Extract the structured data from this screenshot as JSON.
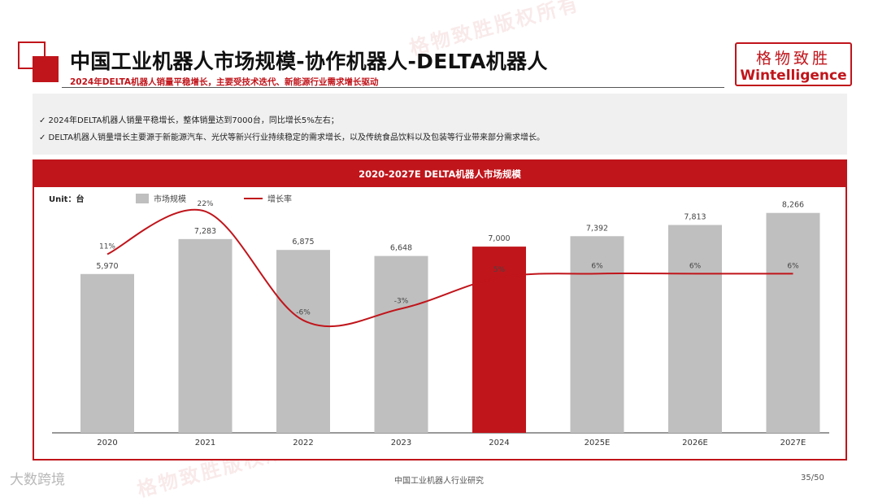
{
  "header": {
    "title": "中国工业机器人市场规模-协作机器人-DELTA机器人",
    "subtitle": "2024年DELTA机器人销量平稳增长，主要受技术迭代、新能源行业需求增长驱动"
  },
  "logo": {
    "cn": "格物致胜",
    "en": "Wintelligence"
  },
  "bullets": [
    "✓ 2024年DELTA机器人销量平稳增长，整体销量达到7000台，同比增长5%左右；",
    "✓ DELTA机器人销量增长主要源于新能源汽车、光伏等新兴行业持续稳定的需求增长，以及传统食品饮料以及包装等行业带来部分需求增长。"
  ],
  "watermark": "格物致胜版权所有",
  "chart_data": {
    "type": "bar",
    "title": "2020-2027E DELTA机器人市场规模",
    "unit_label": "Unit：台",
    "categories": [
      "2020",
      "2021",
      "2022",
      "2023",
      "2024",
      "2025E",
      "2026E",
      "2027E"
    ],
    "series": [
      {
        "name": "市场规模",
        "type": "bar",
        "color": "#bfbfbf",
        "highlight_color": "#c0151b",
        "highlight_category": "2024",
        "values": [
          5970,
          7283,
          6875,
          6648,
          7000,
          7392,
          7813,
          8266
        ],
        "labels": [
          "5,970",
          "7,283",
          "6,875",
          "6,648",
          "7,000",
          "7,392",
          "7,813",
          "8,266"
        ]
      },
      {
        "name": "增长率",
        "type": "line",
        "color": "#c0151b",
        "values": [
          11,
          22,
          -6,
          -3,
          5,
          6,
          6,
          6
        ],
        "labels": [
          "11%",
          "22%",
          "-6%",
          "-3%",
          "5%",
          "6%",
          "6%",
          "6%"
        ]
      }
    ],
    "legend_position": "top-left",
    "grid": false
  },
  "footer": {
    "center": "中国工业机器人行业研究",
    "page": "35/50",
    "mark": "大数跨境"
  },
  "colors": {
    "accent": "#c0151b",
    "bar": "#bfbfbf"
  }
}
